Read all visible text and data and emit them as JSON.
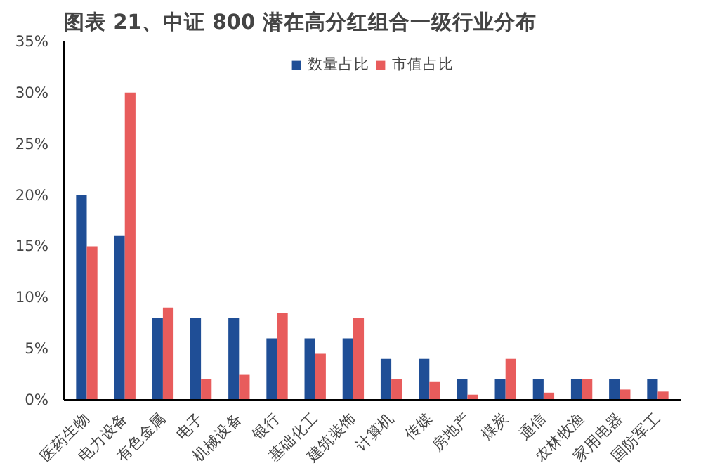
{
  "chart_data": {
    "type": "bar",
    "title": "图表 21、中证 800 潜在高分红组合一级行业分布",
    "categories": [
      "医药生物",
      "电力设备",
      "有色金属",
      "电子",
      "机械设备",
      "银行",
      "基础化工",
      "建筑装饰",
      "计算机",
      "传媒",
      "房地产",
      "煤炭",
      "通信",
      "农林牧渔",
      "家用电器",
      "国防军工"
    ],
    "series": [
      {
        "name": "数量占比",
        "color": "#1f4e96",
        "values": [
          20,
          16,
          8,
          8,
          8,
          6,
          6,
          6,
          4,
          4,
          2,
          2,
          2,
          2,
          2,
          2
        ]
      },
      {
        "name": "市值占比",
        "color": "#e85c5c",
        "values": [
          15,
          30,
          9,
          2,
          2.5,
          8.5,
          4.5,
          8,
          2,
          1.8,
          0.5,
          4,
          0.7,
          2,
          1,
          0.8
        ]
      }
    ],
    "ylim": [
      0,
      35
    ],
    "yticks": [
      {
        "value": 0,
        "label": "0%"
      },
      {
        "value": 5,
        "label": "5%"
      },
      {
        "value": 10,
        "label": "10%"
      },
      {
        "value": 15,
        "label": "15%"
      },
      {
        "value": 20,
        "label": "20%"
      },
      {
        "value": 25,
        "label": "25%"
      },
      {
        "value": 30,
        "label": "30%"
      },
      {
        "value": 35,
        "label": "35%"
      }
    ],
    "grid": false,
    "legend": "top"
  }
}
